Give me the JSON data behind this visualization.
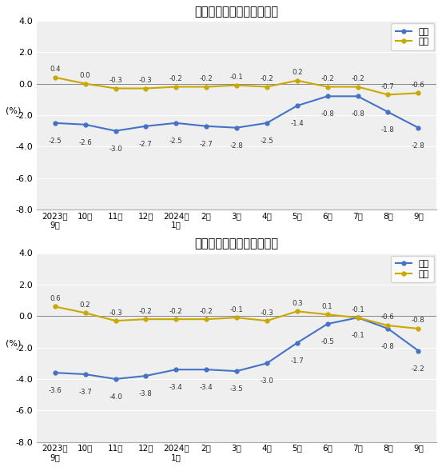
{
  "chart1": {
    "title": "工业生产者出厂价格涨跌幅",
    "yoy": [
      -2.5,
      -2.6,
      -3.0,
      -2.7,
      -2.5,
      -2.7,
      -2.8,
      -2.5,
      -1.4,
      -0.8,
      -0.8,
      -1.8,
      -2.8
    ],
    "mom": [
      0.4,
      0.0,
      -0.3,
      -0.3,
      -0.2,
      -0.2,
      -0.1,
      -0.2,
      0.2,
      -0.2,
      -0.2,
      -0.7,
      -0.6
    ]
  },
  "chart2": {
    "title": "工业生产者购进价格涨跌幅",
    "yoy": [
      -3.6,
      -3.7,
      -4.0,
      -3.8,
      -3.4,
      -3.4,
      -3.5,
      -3.0,
      -1.7,
      -0.5,
      -0.1,
      -0.8,
      -2.2
    ],
    "mom": [
      0.6,
      0.2,
      -0.3,
      -0.2,
      -0.2,
      -0.2,
      -0.1,
      -0.3,
      0.3,
      0.1,
      -0.1,
      -0.6,
      -0.8
    ]
  },
  "x_labels": [
    "2023年\n9月",
    "10月",
    "11月",
    "12月",
    "2024年\n1月",
    "2月",
    "3月",
    "4月",
    "5月",
    "6月",
    "7月",
    "8月",
    "9月"
  ],
  "ylim": [
    -8.0,
    4.0
  ],
  "yticks": [
    -8.0,
    -6.0,
    -4.0,
    -2.0,
    0.0,
    2.0,
    4.0
  ],
  "ylabel": "(%)",
  "yoy_color": "#4472C4",
  "mom_color": "#C9A800",
  "legend_yoy": "同比",
  "legend_mom": "环比",
  "background_color": "#ffffff",
  "plot_bg_color": "#efefef"
}
